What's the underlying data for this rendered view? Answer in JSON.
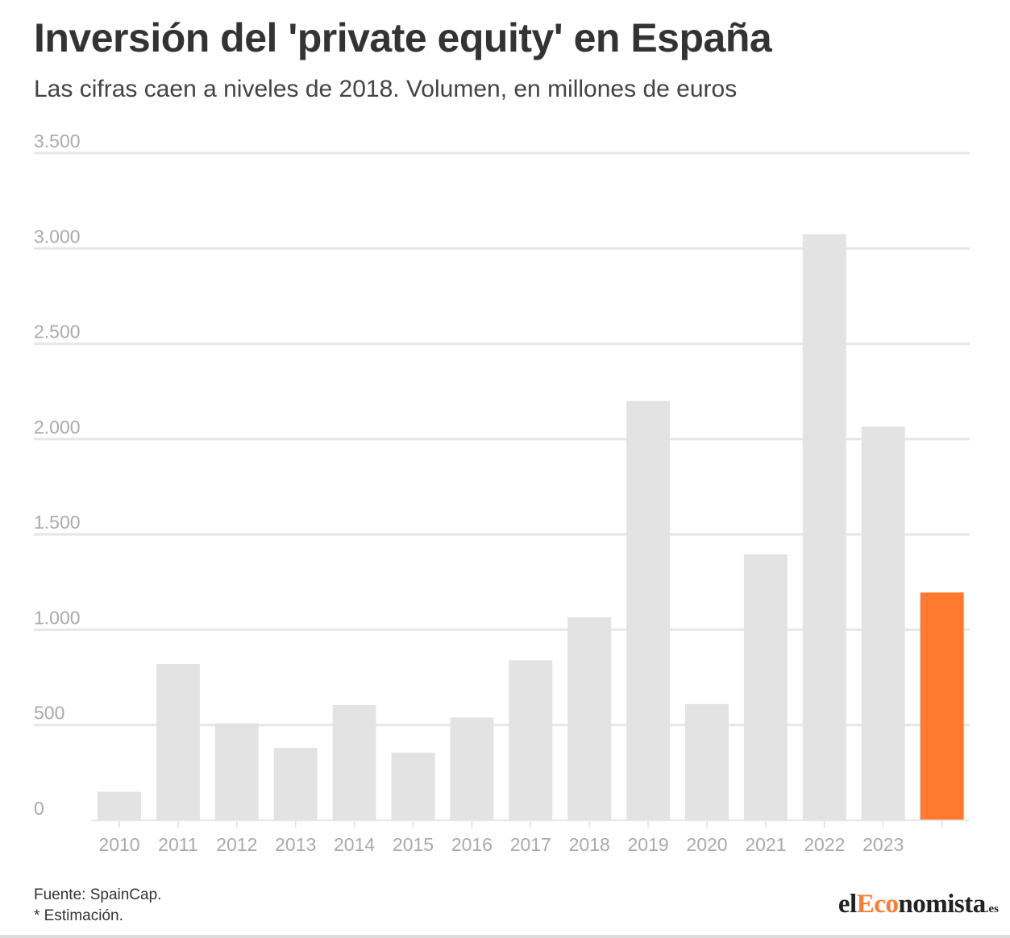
{
  "header": {
    "title": "Inversión del 'private equity' en España",
    "subtitle": "Las cifras caen a niveles de 2018. Volumen, en millones de euros"
  },
  "chart_data": {
    "type": "bar",
    "title": "Inversión del 'private equity' en España",
    "subtitle": "Las cifras caen a niveles de 2018. Volumen, en millones de euros",
    "xlabel": "",
    "ylabel": "",
    "categories": [
      "2010",
      "2011",
      "2012",
      "2013",
      "2014",
      "2015",
      "2016",
      "2017",
      "2018",
      "2019",
      "2020",
      "2021",
      "2022",
      "2023",
      ""
    ],
    "values": [
      150,
      820,
      510,
      380,
      605,
      355,
      540,
      840,
      1065,
      2200,
      610,
      1395,
      3075,
      2065,
      1195
    ],
    "ylim": [
      0,
      3500
    ],
    "yticks": [
      0,
      500,
      1000,
      1500,
      2000,
      2500,
      3000,
      3500
    ],
    "ytick_labels": [
      "0",
      "500",
      "1.000",
      "1.500",
      "2.000",
      "2.500",
      "3.000",
      "3.500"
    ],
    "grid": true,
    "colors": {
      "bar": "#e3e3e3",
      "highlight": "#ff7a2e",
      "grid": "#e6e6e6",
      "tick_label": "#aaaaaa"
    },
    "highlight_index": 14
  },
  "footer": {
    "source": "Fuente: SpainCap.",
    "note": "* Estimación."
  },
  "logo": {
    "part1": "el",
    "part2": "Eco",
    "part3": "nomista",
    "part4": ".es"
  }
}
